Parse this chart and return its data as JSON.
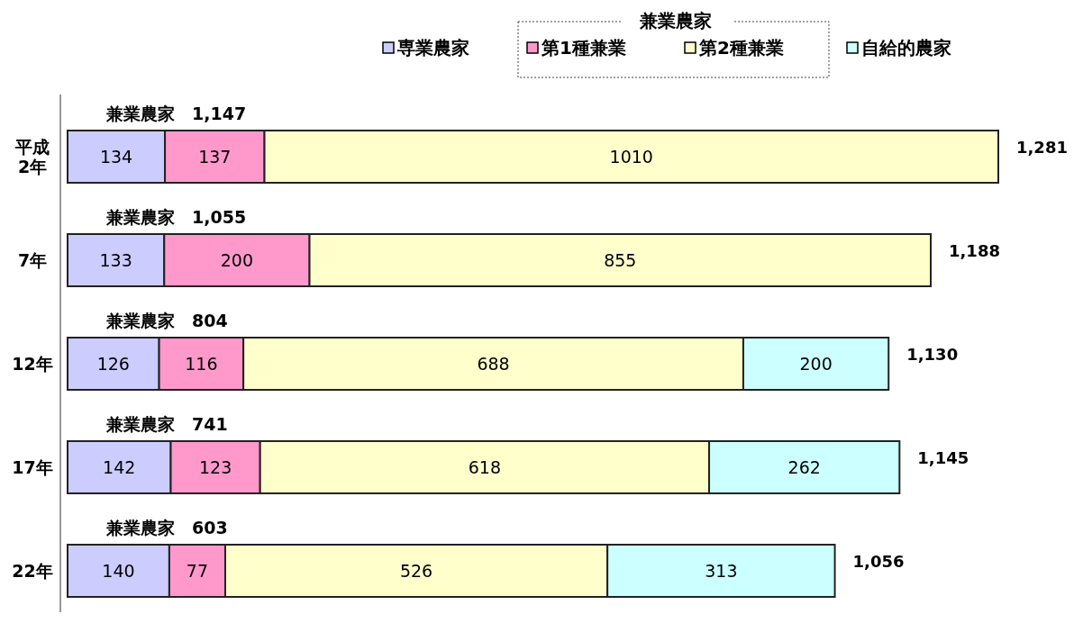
{
  "chart_data": {
    "type": "bar",
    "orientation": "horizontal",
    "stacked": true,
    "data_labels": true,
    "legend": "top",
    "legend_title": "兼業農家",
    "categories": [
      "平成\n2年",
      "7年",
      "12年",
      "17年",
      "22年"
    ],
    "series": [
      {
        "name": "専業農家",
        "color": "#ccccff",
        "values": [
          134,
          133,
          126,
          142,
          140
        ]
      },
      {
        "name": "第1種兼業",
        "color": "#ff99cc",
        "values": [
          137,
          200,
          116,
          123,
          77
        ]
      },
      {
        "name": "第2種兼業",
        "color": "#ffffcc",
        "values": [
          1010,
          855,
          688,
          618,
          526
        ]
      },
      {
        "name": "自給的農家",
        "color": "#ccffff",
        "values": [
          null,
          null,
          200,
          262,
          313
        ]
      }
    ],
    "totals": [
      "1,281",
      "1,188",
      "1,130",
      "1,145",
      "1,056"
    ],
    "annotations": [
      "兼業農家　1,147",
      "兼業農家　1,055",
      "兼業農家　804",
      "兼業農家　741",
      "兼業農家　603"
    ]
  }
}
